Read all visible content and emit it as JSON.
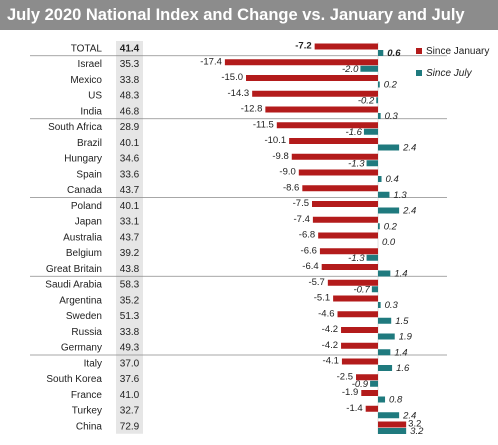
{
  "title": "July 2020 National Index and Change vs. January and July",
  "colors": {
    "jan": "#b31b1b",
    "jul": "#1f7a7e",
    "index_bg": "#e6e6e6",
    "divider": "#8a8a8a",
    "title_bg": "#8c8c8c"
  },
  "legend": {
    "jan": "Since January",
    "jul": "Since July"
  },
  "chart_data": {
    "type": "bar",
    "orientation": "horizontal",
    "categories": [
      "TOTAL",
      "Israel",
      "Mexico",
      "US",
      "India",
      "South Africa",
      "Brazil",
      "Hungary",
      "Spain",
      "Canada",
      "Poland",
      "Japan",
      "Australia",
      "Belgium",
      "Great Britain",
      "Saudi Arabia",
      "Argentina",
      "Sweden",
      "Russia",
      "Germany",
      "Italy",
      "South Korea",
      "France",
      "Turkey",
      "China"
    ],
    "index": [
      "41.4",
      "35.3",
      "33.8",
      "48.3",
      "46.8",
      "28.9",
      "40.1",
      "34.6",
      "33.6",
      "43.7",
      "40.1",
      "33.1",
      "43.7",
      "39.2",
      "43.8",
      "58.3",
      "35.2",
      "51.3",
      "33.8",
      "49.3",
      "37.0",
      "37.6",
      "41.0",
      "32.7",
      "72.9"
    ],
    "series": [
      {
        "name": "Since January",
        "values": [
          -7.2,
          -17.4,
          -15.0,
          -14.3,
          -12.8,
          -11.5,
          -10.1,
          -9.8,
          -9.0,
          -8.6,
          -7.5,
          -7.4,
          -6.8,
          -6.6,
          -6.4,
          -5.7,
          -5.1,
          -4.6,
          -4.2,
          -4.2,
          -4.1,
          -2.5,
          -1.9,
          -1.4,
          3.2
        ]
      },
      {
        "name": "Since July",
        "values": [
          0.6,
          -2.0,
          0.2,
          -0.2,
          0.3,
          -1.6,
          2.4,
          -1.3,
          0.4,
          1.3,
          2.4,
          0.2,
          0.0,
          -1.3,
          1.4,
          -0.7,
          0.3,
          1.5,
          1.9,
          1.4,
          1.6,
          -0.9,
          0.8,
          2.4,
          3.2
        ]
      }
    ],
    "labels_jan": [
      "-7.2",
      "-17.4",
      "-15.0",
      "-14.3",
      "-12.8",
      "-11.5",
      "-10.1",
      "-9.8",
      "-9.0",
      "-8.6",
      "-7.5",
      "-7.4",
      "-6.8",
      "-6.6",
      "-6.4",
      "-5.7",
      "-5.1",
      "-4.6",
      "-4.2",
      "-4.2",
      "-4.1",
      "-2.5",
      "-1.9",
      "-1.4",
      "3.2"
    ],
    "labels_jul": [
      "0.6",
      "-2.0",
      "0.2",
      "-0.2",
      "0.3",
      "-1.6",
      "2.4",
      "-1.3",
      "0.4",
      "1.3",
      "2.4",
      "0.2",
      "0.0",
      "-1.3",
      "1.4",
      "-0.7",
      "0.3",
      "1.5",
      "1.9",
      "1.4",
      "1.6",
      "-0.9",
      "0.8",
      "2.4",
      "3.2"
    ],
    "groups": [
      [
        0
      ],
      [
        1,
        2,
        3,
        4
      ],
      [
        5,
        6,
        7,
        8,
        9
      ],
      [
        10,
        11,
        12,
        13,
        14
      ],
      [
        15,
        16,
        17,
        18,
        19
      ],
      [
        20,
        21,
        22,
        23,
        24
      ]
    ],
    "bold_rows": [
      0
    ]
  }
}
